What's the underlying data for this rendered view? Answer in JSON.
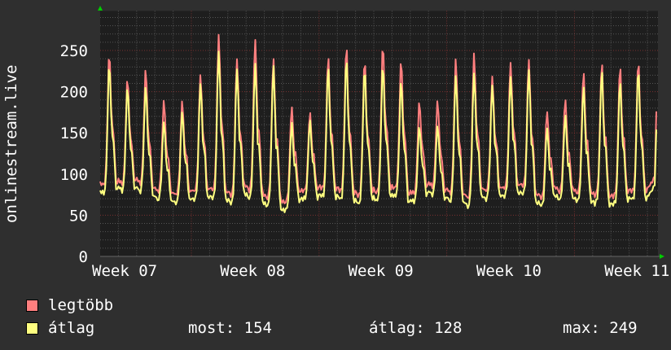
{
  "chart_data": {
    "type": "line",
    "ylabel": "onlinestream.live",
    "ylim": [
      0,
      298
    ],
    "y_ticks": [
      0,
      50,
      100,
      150,
      200,
      250
    ],
    "x_ticks": [
      "Week 07",
      "Week 08",
      "Week 09",
      "Week 10",
      "Week 11"
    ],
    "grid": true,
    "legend_placement": "bottom-left",
    "series": [
      {
        "name": "legtöbb",
        "color": "#ff7f7f",
        "daily_peaks": [
          247,
          215,
          227,
          190,
          190,
          222,
          270,
          240,
          264,
          242,
          183,
          175,
          242,
          255,
          239,
          259,
          240,
          188,
          188,
          239,
          247,
          220,
          237,
          240,
          176,
          191,
          225,
          237,
          232,
          237
        ],
        "daily_troughs": [
          85,
          88,
          90,
          80,
          75,
          78,
          80,
          75,
          82,
          72,
          65,
          78,
          82,
          80,
          75,
          78,
          82,
          75,
          85,
          78,
          72,
          80,
          82,
          85,
          72,
          80,
          78,
          75,
          72,
          78
        ],
        "last": 176
      },
      {
        "name": "átlag",
        "color": "#ffff80",
        "daily_peaks": [
          234,
          205,
          207,
          165,
          178,
          212,
          250,
          227,
          234,
          232,
          163,
          165,
          229,
          240,
          229,
          234,
          215,
          158,
          158,
          220,
          224,
          210,
          220,
          227,
          155,
          171,
          207,
          227,
          214,
          227
        ],
        "daily_troughs": [
          75,
          80,
          80,
          70,
          65,
          68,
          70,
          65,
          72,
          62,
          55,
          68,
          72,
          70,
          65,
          68,
          72,
          65,
          75,
          68,
          62,
          70,
          72,
          75,
          62,
          70,
          68,
          65,
          62,
          68
        ],
        "last": 154
      }
    ],
    "colors": {
      "background": "#2f2f2f",
      "plot_background": "#1e1e1e",
      "grid_minor": "#555555",
      "grid_major": "#7a3030",
      "axis_arrow": "#00cc00"
    }
  },
  "legend": {
    "max_label": "legtöbb",
    "avg_label": "átlag",
    "now": "most: 154",
    "average": "átlag: 128",
    "maximum": "max: 249"
  }
}
